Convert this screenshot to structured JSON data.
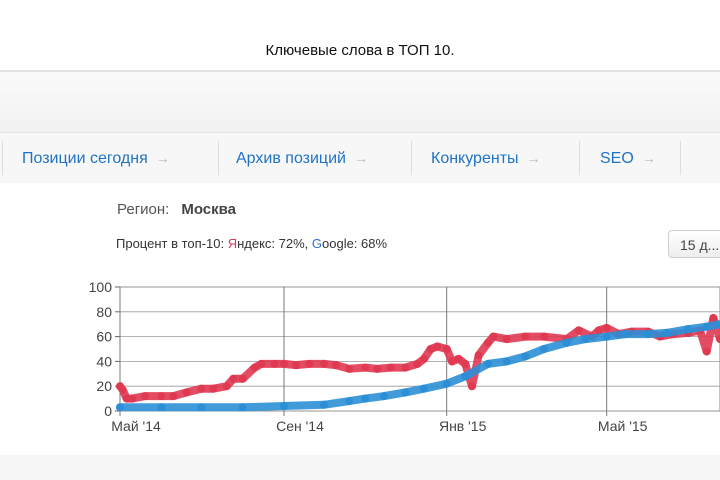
{
  "caption": "Ключевые слова в ТОП 10.",
  "nav": {
    "items": [
      {
        "label": "Позиции сегодня",
        "arrow": "→"
      },
      {
        "label": "Архив позиций",
        "arrow": "→"
      },
      {
        "label": "Конкуренты",
        "arrow": "→"
      },
      {
        "label": "SEO",
        "arrow": "→"
      }
    ]
  },
  "region": {
    "label": "Регион:",
    "value": "Москва"
  },
  "percent": {
    "prefix": "Процент в топ-10: ",
    "yandex_first": "Я",
    "yandex_rest": "ндекс: 72%, ",
    "google_first": "G",
    "google_rest": "oogle: 68%"
  },
  "period_button": {
    "label": "15 д..."
  },
  "colors": {
    "yandex": "#e03a52",
    "google": "#2c8fd6",
    "link": "#1f73c4"
  },
  "chart_data": {
    "type": "line",
    "title": "",
    "xlabel": "",
    "ylabel": "",
    "ylim": [
      0,
      100
    ],
    "yticks": [
      0,
      20,
      40,
      60,
      80,
      100
    ],
    "x_range": [
      "2014-05-01",
      "2015-07-25"
    ],
    "xticks": [
      {
        "label": "Май '14",
        "date": "2014-05-01"
      },
      {
        "label": "Сен '14",
        "date": "2014-09-01"
      },
      {
        "label": "Янв '15",
        "date": "2015-01-01"
      },
      {
        "label": "Май '15",
        "date": "2015-05-01"
      }
    ],
    "grid": true,
    "series": [
      {
        "name": "Яндекс",
        "x": [
          "2014-05-01",
          "2014-05-03",
          "2014-05-06",
          "2014-05-10",
          "2014-05-20",
          "2014-06-01",
          "2014-06-10",
          "2014-06-20",
          "2014-07-01",
          "2014-07-10",
          "2014-07-20",
          "2014-07-25",
          "2014-08-01",
          "2014-08-10",
          "2014-08-15",
          "2014-08-25",
          "2014-09-01",
          "2014-09-10",
          "2014-09-20",
          "2014-10-01",
          "2014-10-10",
          "2014-10-20",
          "2014-11-01",
          "2014-11-10",
          "2014-11-20",
          "2014-12-01",
          "2014-12-10",
          "2014-12-15",
          "2014-12-20",
          "2014-12-25",
          "2015-01-01",
          "2015-01-05",
          "2015-01-10",
          "2015-01-15",
          "2015-01-20",
          "2015-01-25",
          "2015-02-01",
          "2015-02-05",
          "2015-02-15",
          "2015-03-01",
          "2015-03-15",
          "2015-04-01",
          "2015-04-10",
          "2015-04-20",
          "2015-04-25",
          "2015-05-01",
          "2015-05-10",
          "2015-05-20",
          "2015-06-01",
          "2015-06-10",
          "2015-06-20",
          "2015-07-01",
          "2015-07-10",
          "2015-07-15",
          "2015-07-20",
          "2015-07-25"
        ],
        "values": [
          20,
          17,
          10,
          10,
          12,
          12,
          12,
          15,
          18,
          18,
          20,
          26,
          26,
          35,
          38,
          38,
          38,
          37,
          38,
          38,
          37,
          34,
          35,
          34,
          35,
          35,
          38,
          42,
          50,
          52,
          50,
          40,
          42,
          38,
          20,
          45,
          55,
          60,
          58,
          60,
          60,
          58,
          65,
          60,
          65,
          67,
          62,
          64,
          64,
          60,
          62,
          63,
          65,
          48,
          75,
          58
        ]
      },
      {
        "name": "Google",
        "x": [
          "2014-05-01",
          "2014-06-01",
          "2014-07-01",
          "2014-08-01",
          "2014-09-01",
          "2014-10-01",
          "2014-10-20",
          "2014-11-01",
          "2014-11-15",
          "2014-12-01",
          "2014-12-15",
          "2015-01-01",
          "2015-01-15",
          "2015-02-01",
          "2015-02-15",
          "2015-03-01",
          "2015-03-15",
          "2015-04-01",
          "2015-04-15",
          "2015-05-01",
          "2015-05-15",
          "2015-06-01",
          "2015-06-15",
          "2015-07-01",
          "2015-07-15",
          "2015-07-25"
        ],
        "values": [
          3,
          3,
          3,
          3,
          4,
          5,
          8,
          10,
          12,
          15,
          18,
          22,
          28,
          38,
          40,
          44,
          50,
          55,
          58,
          60,
          62,
          62,
          63,
          66,
          68,
          70
        ]
      }
    ]
  }
}
